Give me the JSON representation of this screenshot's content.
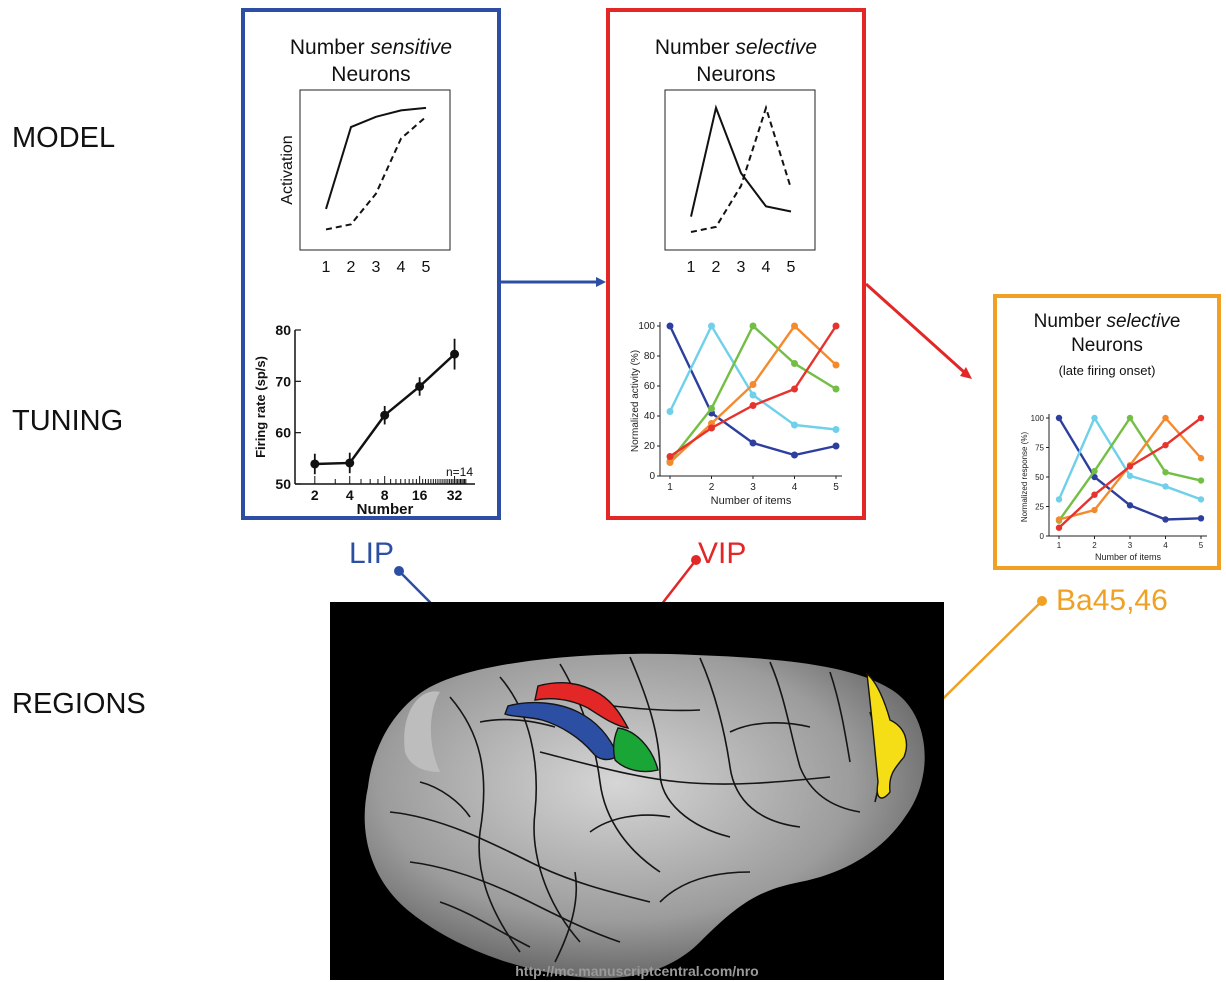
{
  "row_labels": {
    "model": "MODEL",
    "tuning": "TUNING",
    "regions": "REGIONS"
  },
  "colors": {
    "lip": "#2d4fa3",
    "vip": "#e32626",
    "ba": "#f0a022",
    "green": "#1aa636",
    "yellow": "#f5de16"
  },
  "lip_panel": {
    "title_line1_pre": "Number ",
    "title_line1_em": "sensitive",
    "title_line2": "Neurons",
    "model_chart": {
      "type": "line",
      "ylabel": "Activation",
      "x": [
        1,
        2,
        3,
        4,
        5
      ],
      "series": [
        {
          "style": "solid",
          "values": [
            0.18,
            0.82,
            0.9,
            0.95,
            0.97
          ]
        },
        {
          "style": "dashed",
          "values": [
            0.02,
            0.06,
            0.3,
            0.73,
            0.9
          ]
        }
      ],
      "ylim": [
        0,
        1
      ]
    },
    "tuning_chart": {
      "type": "line",
      "ylabel": "Firing rate (sp/s)",
      "xlabel": "Number",
      "x": [
        2,
        4,
        8,
        16,
        32
      ],
      "x_scale": "log",
      "values": [
        53.9,
        54.1,
        63.4,
        69.0,
        75.3
      ],
      "errors": [
        2.0,
        2.0,
        1.8,
        1.8,
        3.0
      ],
      "ylim": [
        50,
        80
      ],
      "yticks": [
        50,
        60,
        70,
        80
      ],
      "annotation": "n=14"
    }
  },
  "vip_panel": {
    "title_line1_pre": "Number ",
    "title_line1_em": "selective",
    "title_line2": "Neurons",
    "model_chart": {
      "type": "line",
      "x": [
        1,
        2,
        3,
        4,
        5
      ],
      "series": [
        {
          "style": "solid",
          "values": [
            0.12,
            0.97,
            0.46,
            0.2,
            0.16
          ]
        },
        {
          "style": "dashed",
          "values": [
            0.0,
            0.04,
            0.36,
            0.97,
            0.34
          ]
        }
      ],
      "ylim": [
        0,
        1
      ]
    },
    "tuning_chart": {
      "type": "line",
      "ylabel": "Normalized activity (%)",
      "xlabel": "Number of items",
      "x": [
        1,
        2,
        3,
        4,
        5
      ],
      "ylim": [
        0,
        100
      ],
      "yticks": [
        0,
        20,
        40,
        60,
        80,
        100
      ],
      "series": [
        {
          "color": "#2d3f9e",
          "values": [
            100,
            42,
            22,
            14,
            20
          ]
        },
        {
          "color": "#6fd0ea",
          "values": [
            43,
            100,
            54,
            34,
            31
          ]
        },
        {
          "color": "#72bf44",
          "values": [
            10,
            45,
            100,
            75,
            58
          ]
        },
        {
          "color": "#f48a2e",
          "values": [
            9,
            35,
            61,
            100,
            74
          ]
        },
        {
          "color": "#e7332e",
          "values": [
            13,
            32,
            47,
            58,
            100
          ]
        }
      ]
    }
  },
  "ba_panel": {
    "title_line1_pre": "Number ",
    "title_line1_em": "selectiv",
    "title_line1_post": "e",
    "title_line2": "Neurons",
    "title_line3": "(late firing onset)",
    "tuning_chart": {
      "type": "line",
      "ylabel": "Normalized response (%)",
      "xlabel": "Number of items",
      "x": [
        1,
        2,
        3,
        4,
        5
      ],
      "ylim": [
        0,
        100
      ],
      "yticks": [
        0,
        25,
        50,
        75,
        100
      ],
      "series": [
        {
          "color": "#2d3f9e",
          "values": [
            100,
            50,
            26,
            14,
            15
          ]
        },
        {
          "color": "#6fd0ea",
          "values": [
            31,
            100,
            51,
            42,
            31
          ]
        },
        {
          "color": "#72bf44",
          "values": [
            13,
            55,
            100,
            54,
            47
          ]
        },
        {
          "color": "#f48a2e",
          "values": [
            14,
            22,
            60,
            100,
            66
          ]
        },
        {
          "color": "#e7332e",
          "values": [
            7,
            35,
            59,
            77,
            100
          ]
        }
      ]
    }
  },
  "region_labels": {
    "lip": "LIP",
    "vip": "VIP",
    "ba": "Ba45,46"
  },
  "footer_url": "http://mc.manuscriptcentral.com/nro"
}
